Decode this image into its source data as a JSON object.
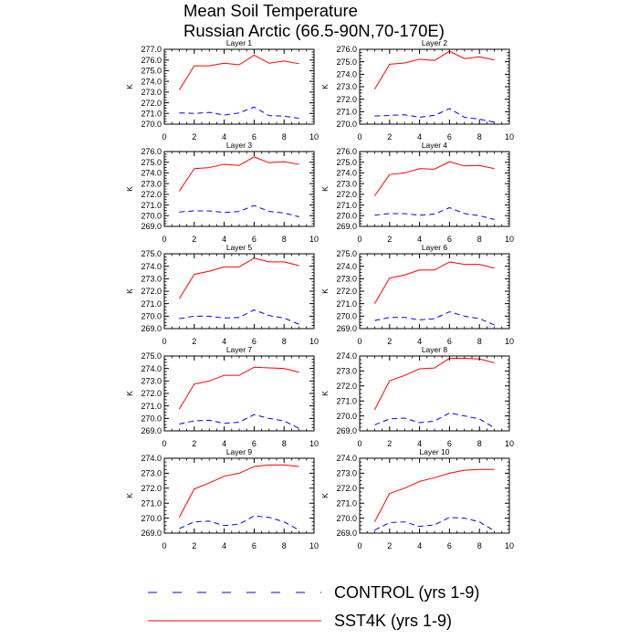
{
  "chart_data": {
    "type": "line",
    "title": "Mean Soil Temperature",
    "subtitle": "Russian Arctic (66.5-90N,70-170E)",
    "ylabel": "K",
    "x": [
      1,
      2,
      3,
      4,
      5,
      6,
      7,
      8,
      9
    ],
    "xlim": [
      0,
      10
    ],
    "xticks": [
      "0",
      "2",
      "4",
      "6",
      "8",
      "10"
    ],
    "grid": false,
    "legend_position": "bottom",
    "series": [
      {
        "name": "CONTROL (yrs 1-9)",
        "color": "#0000ff",
        "dashed": true
      },
      {
        "name": "SST4K (yrs 1-9)",
        "color": "#ff0000",
        "dashed": false
      }
    ],
    "panels": [
      {
        "title": "Layer 1",
        "ylim": [
          270,
          277
        ],
        "yticks": [
          "270.0",
          "271.0",
          "272.0",
          "273.0",
          "274.0",
          "275.0",
          "276.0",
          "277.0"
        ],
        "values": [
          [
            271.05,
            271.0,
            271.1,
            270.85,
            271.05,
            271.6,
            270.8,
            270.75,
            270.55
          ],
          [
            273.2,
            275.45,
            275.45,
            275.7,
            275.55,
            276.45,
            275.7,
            275.9,
            275.65
          ]
        ]
      },
      {
        "title": "Layer 2",
        "ylim": [
          270,
          276
        ],
        "yticks": [
          "270.0",
          "271.0",
          "272.0",
          "273.0",
          "274.0",
          "275.0",
          "276.0"
        ],
        "values": [
          [
            270.65,
            270.7,
            270.75,
            270.55,
            270.7,
            271.25,
            270.55,
            270.4,
            270.15
          ],
          [
            272.8,
            274.8,
            274.9,
            275.2,
            275.1,
            275.85,
            275.25,
            275.4,
            275.15
          ]
        ]
      },
      {
        "title": "Layer 3",
        "ylim": [
          269,
          276
        ],
        "yticks": [
          "269.0",
          "270.0",
          "271.0",
          "272.0",
          "273.0",
          "274.0",
          "275.0",
          "276.0"
        ],
        "values": [
          [
            270.35,
            270.45,
            270.45,
            270.3,
            270.4,
            270.95,
            270.4,
            270.25,
            269.9
          ],
          [
            272.3,
            274.4,
            274.5,
            274.8,
            274.7,
            275.5,
            274.95,
            275.05,
            274.8
          ]
        ]
      },
      {
        "title": "Layer 4",
        "ylim": [
          269,
          276
        ],
        "yticks": [
          "269.0",
          "270.0",
          "271.0",
          "272.0",
          "273.0",
          "274.0",
          "275.0",
          "276.0"
        ],
        "values": [
          [
            270.05,
            270.2,
            270.2,
            270.05,
            270.15,
            270.75,
            270.2,
            270.0,
            269.65
          ],
          [
            271.85,
            273.85,
            274.0,
            274.4,
            274.35,
            275.05,
            274.65,
            274.7,
            274.4
          ]
        ]
      },
      {
        "title": "Layer 5",
        "ylim": [
          269,
          275
        ],
        "yticks": [
          "269.0",
          "270.0",
          "271.0",
          "272.0",
          "273.0",
          "274.0",
          "275.0"
        ],
        "values": [
          [
            269.8,
            270.0,
            270.0,
            269.85,
            269.9,
            270.5,
            270.05,
            269.85,
            269.35
          ],
          [
            271.4,
            273.35,
            273.6,
            273.95,
            273.95,
            274.65,
            274.35,
            274.35,
            274.05
          ]
        ]
      },
      {
        "title": "Layer 6",
        "ylim": [
          269,
          275
        ],
        "yticks": [
          "269.0",
          "270.0",
          "271.0",
          "272.0",
          "273.0",
          "274.0",
          "275.0"
        ],
        "values": [
          [
            269.65,
            269.9,
            269.9,
            269.7,
            269.8,
            270.35,
            270.0,
            269.8,
            269.3
          ],
          [
            271.0,
            273.05,
            273.3,
            273.7,
            273.7,
            274.35,
            274.15,
            274.15,
            273.85
          ]
        ]
      },
      {
        "title": "Layer 7",
        "ylim": [
          269,
          275
        ],
        "yticks": [
          "269.0",
          "270.0",
          "271.0",
          "272.0",
          "273.0",
          "274.0",
          "275.0"
        ],
        "values": [
          [
            269.55,
            269.8,
            269.85,
            269.6,
            269.7,
            270.3,
            270.0,
            269.8,
            269.2
          ],
          [
            270.75,
            272.75,
            273.0,
            273.45,
            273.45,
            274.1,
            274.05,
            274.0,
            273.7
          ]
        ]
      },
      {
        "title": "Layer 8",
        "ylim": [
          269,
          274
        ],
        "yticks": [
          "269.0",
          "270.0",
          "271.0",
          "272.0",
          "273.0",
          "274.0"
        ],
        "values": [
          [
            269.4,
            269.8,
            269.85,
            269.55,
            269.65,
            270.2,
            270.0,
            269.8,
            269.2
          ],
          [
            270.4,
            272.35,
            272.7,
            273.15,
            273.2,
            273.85,
            273.85,
            273.8,
            273.55
          ]
        ]
      },
      {
        "title": "Layer 9",
        "ylim": [
          269,
          274
        ],
        "yticks": [
          "269.0",
          "270.0",
          "271.0",
          "272.0",
          "273.0",
          "274.0"
        ],
        "values": [
          [
            269.3,
            269.75,
            269.8,
            269.5,
            269.6,
            270.15,
            270.05,
            269.75,
            269.2
          ],
          [
            270.05,
            271.95,
            272.35,
            272.8,
            273.0,
            273.45,
            273.55,
            273.55,
            273.45
          ]
        ]
      },
      {
        "title": "Layer 10",
        "ylim": [
          269,
          274
        ],
        "yticks": [
          "269.0",
          "270.0",
          "271.0",
          "272.0",
          "273.0",
          "274.0"
        ],
        "values": [
          [
            269.2,
            269.7,
            269.75,
            269.45,
            269.55,
            270.05,
            270.0,
            269.75,
            269.15
          ],
          [
            269.75,
            271.65,
            272.0,
            272.45,
            272.7,
            273.0,
            273.2,
            273.25,
            273.25
          ]
        ]
      }
    ]
  }
}
